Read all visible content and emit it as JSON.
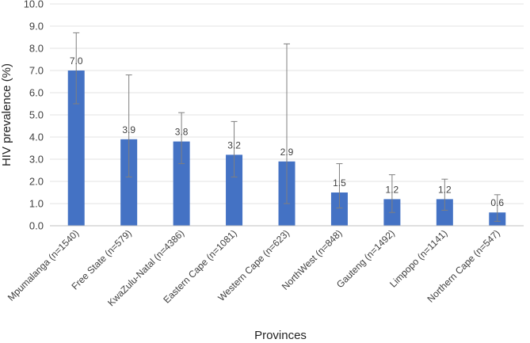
{
  "chart_data": {
    "type": "bar",
    "categories": [
      "Mpumalanga (n=1540)",
      "Free State (n=579)",
      "KwaZulu-Natal (n=4386)",
      "Eastern Cape (n=1081)",
      "Western Cape (n=623)",
      "NorthWest (n=848)",
      "Gauteng (n=1492)",
      "Limpopo (n=1141)",
      "Northern Cape (n=547)"
    ],
    "values": [
      7.0,
      3.9,
      3.8,
      3.2,
      2.9,
      1.5,
      1.2,
      1.2,
      0.6
    ],
    "data_labels": [
      "7.0",
      "3.9",
      "3.8",
      "3.2",
      "2.9",
      "1.5",
      "1.2",
      "1.2",
      "0.6"
    ],
    "error_low": [
      5.5,
      2.2,
      2.8,
      2.2,
      1.0,
      0.8,
      0.6,
      0.7,
      0.2
    ],
    "error_high": [
      8.7,
      6.8,
      5.1,
      4.7,
      8.2,
      2.8,
      2.3,
      2.1,
      1.4
    ],
    "xlabel": "Provinces",
    "ylabel": "HIV prevalence (%)",
    "ylim": [
      0,
      10
    ],
    "yticks": [
      "0.0",
      "1.0",
      "2.0",
      "3.0",
      "4.0",
      "5.0",
      "6.0",
      "7.0",
      "8.0",
      "9.0",
      "10.0"
    ],
    "grid": true,
    "bar_color": "#4472c4",
    "error_bar_color": "#7f7f7f"
  }
}
